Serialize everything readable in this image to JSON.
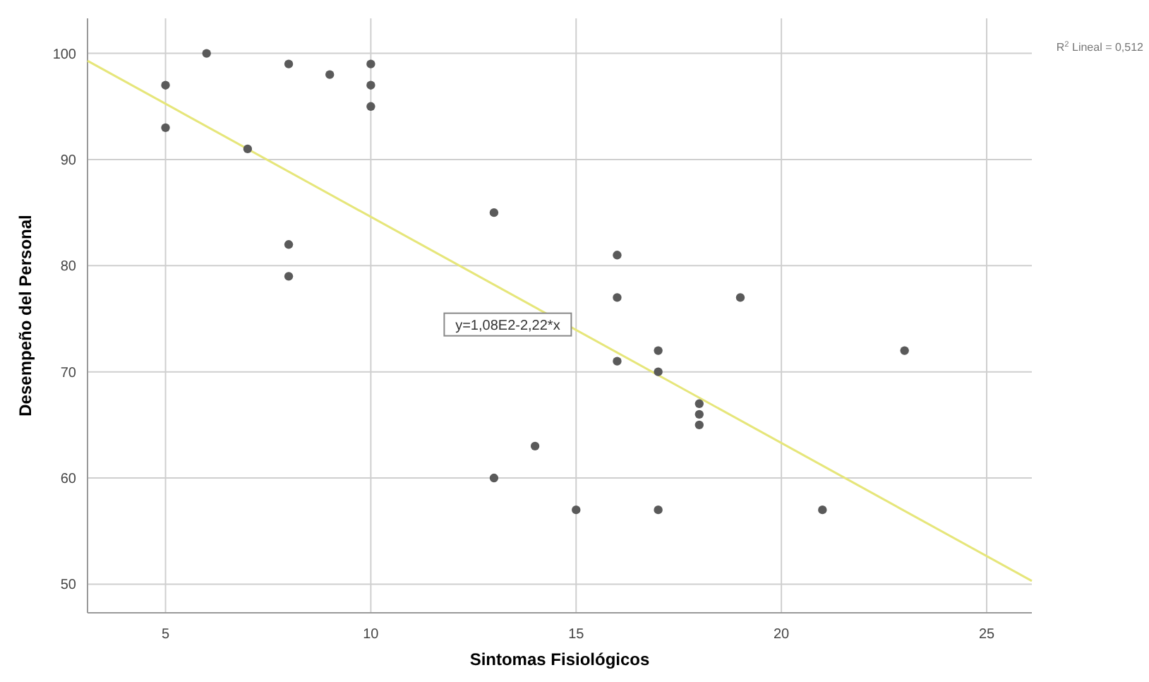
{
  "chart_data": {
    "type": "scatter",
    "xlabel": "Sintomas Fisiológicos",
    "ylabel": "Desempeño del Personal",
    "xlim": [
      3.1,
      26.1
    ],
    "ylim": [
      47.3,
      103.3
    ],
    "xticks": [
      5,
      10,
      15,
      20,
      25
    ],
    "yticks": [
      50,
      60,
      70,
      80,
      90,
      100
    ],
    "grid": true,
    "marker": "circle",
    "series": [
      {
        "color": "#5a5a5a",
        "x": [
          5,
          5,
          6,
          7,
          8,
          8,
          8,
          9,
          10,
          10,
          10,
          13,
          13,
          14,
          15,
          16,
          16,
          16,
          17,
          17,
          17,
          18,
          18,
          18,
          19,
          21,
          23
        ],
        "values": [
          97,
          93,
          100,
          91,
          99,
          82,
          79,
          98,
          99,
          97,
          95,
          85,
          60,
          63,
          57,
          81,
          77,
          71,
          72,
          70,
          57,
          67,
          66,
          65,
          77,
          57,
          72
        ]
      },
      {
        "type": "line",
        "color": "#e6e67a",
        "x": [
          3.1,
          26.1
        ],
        "values": [
          99.3,
          50.3
        ],
        "marker": "none",
        "line_style": "solid"
      }
    ],
    "annotations": [
      "y=1,08E2-2,22*x",
      "R$^{2}$ Lineal = 0,512"
    ]
  }
}
